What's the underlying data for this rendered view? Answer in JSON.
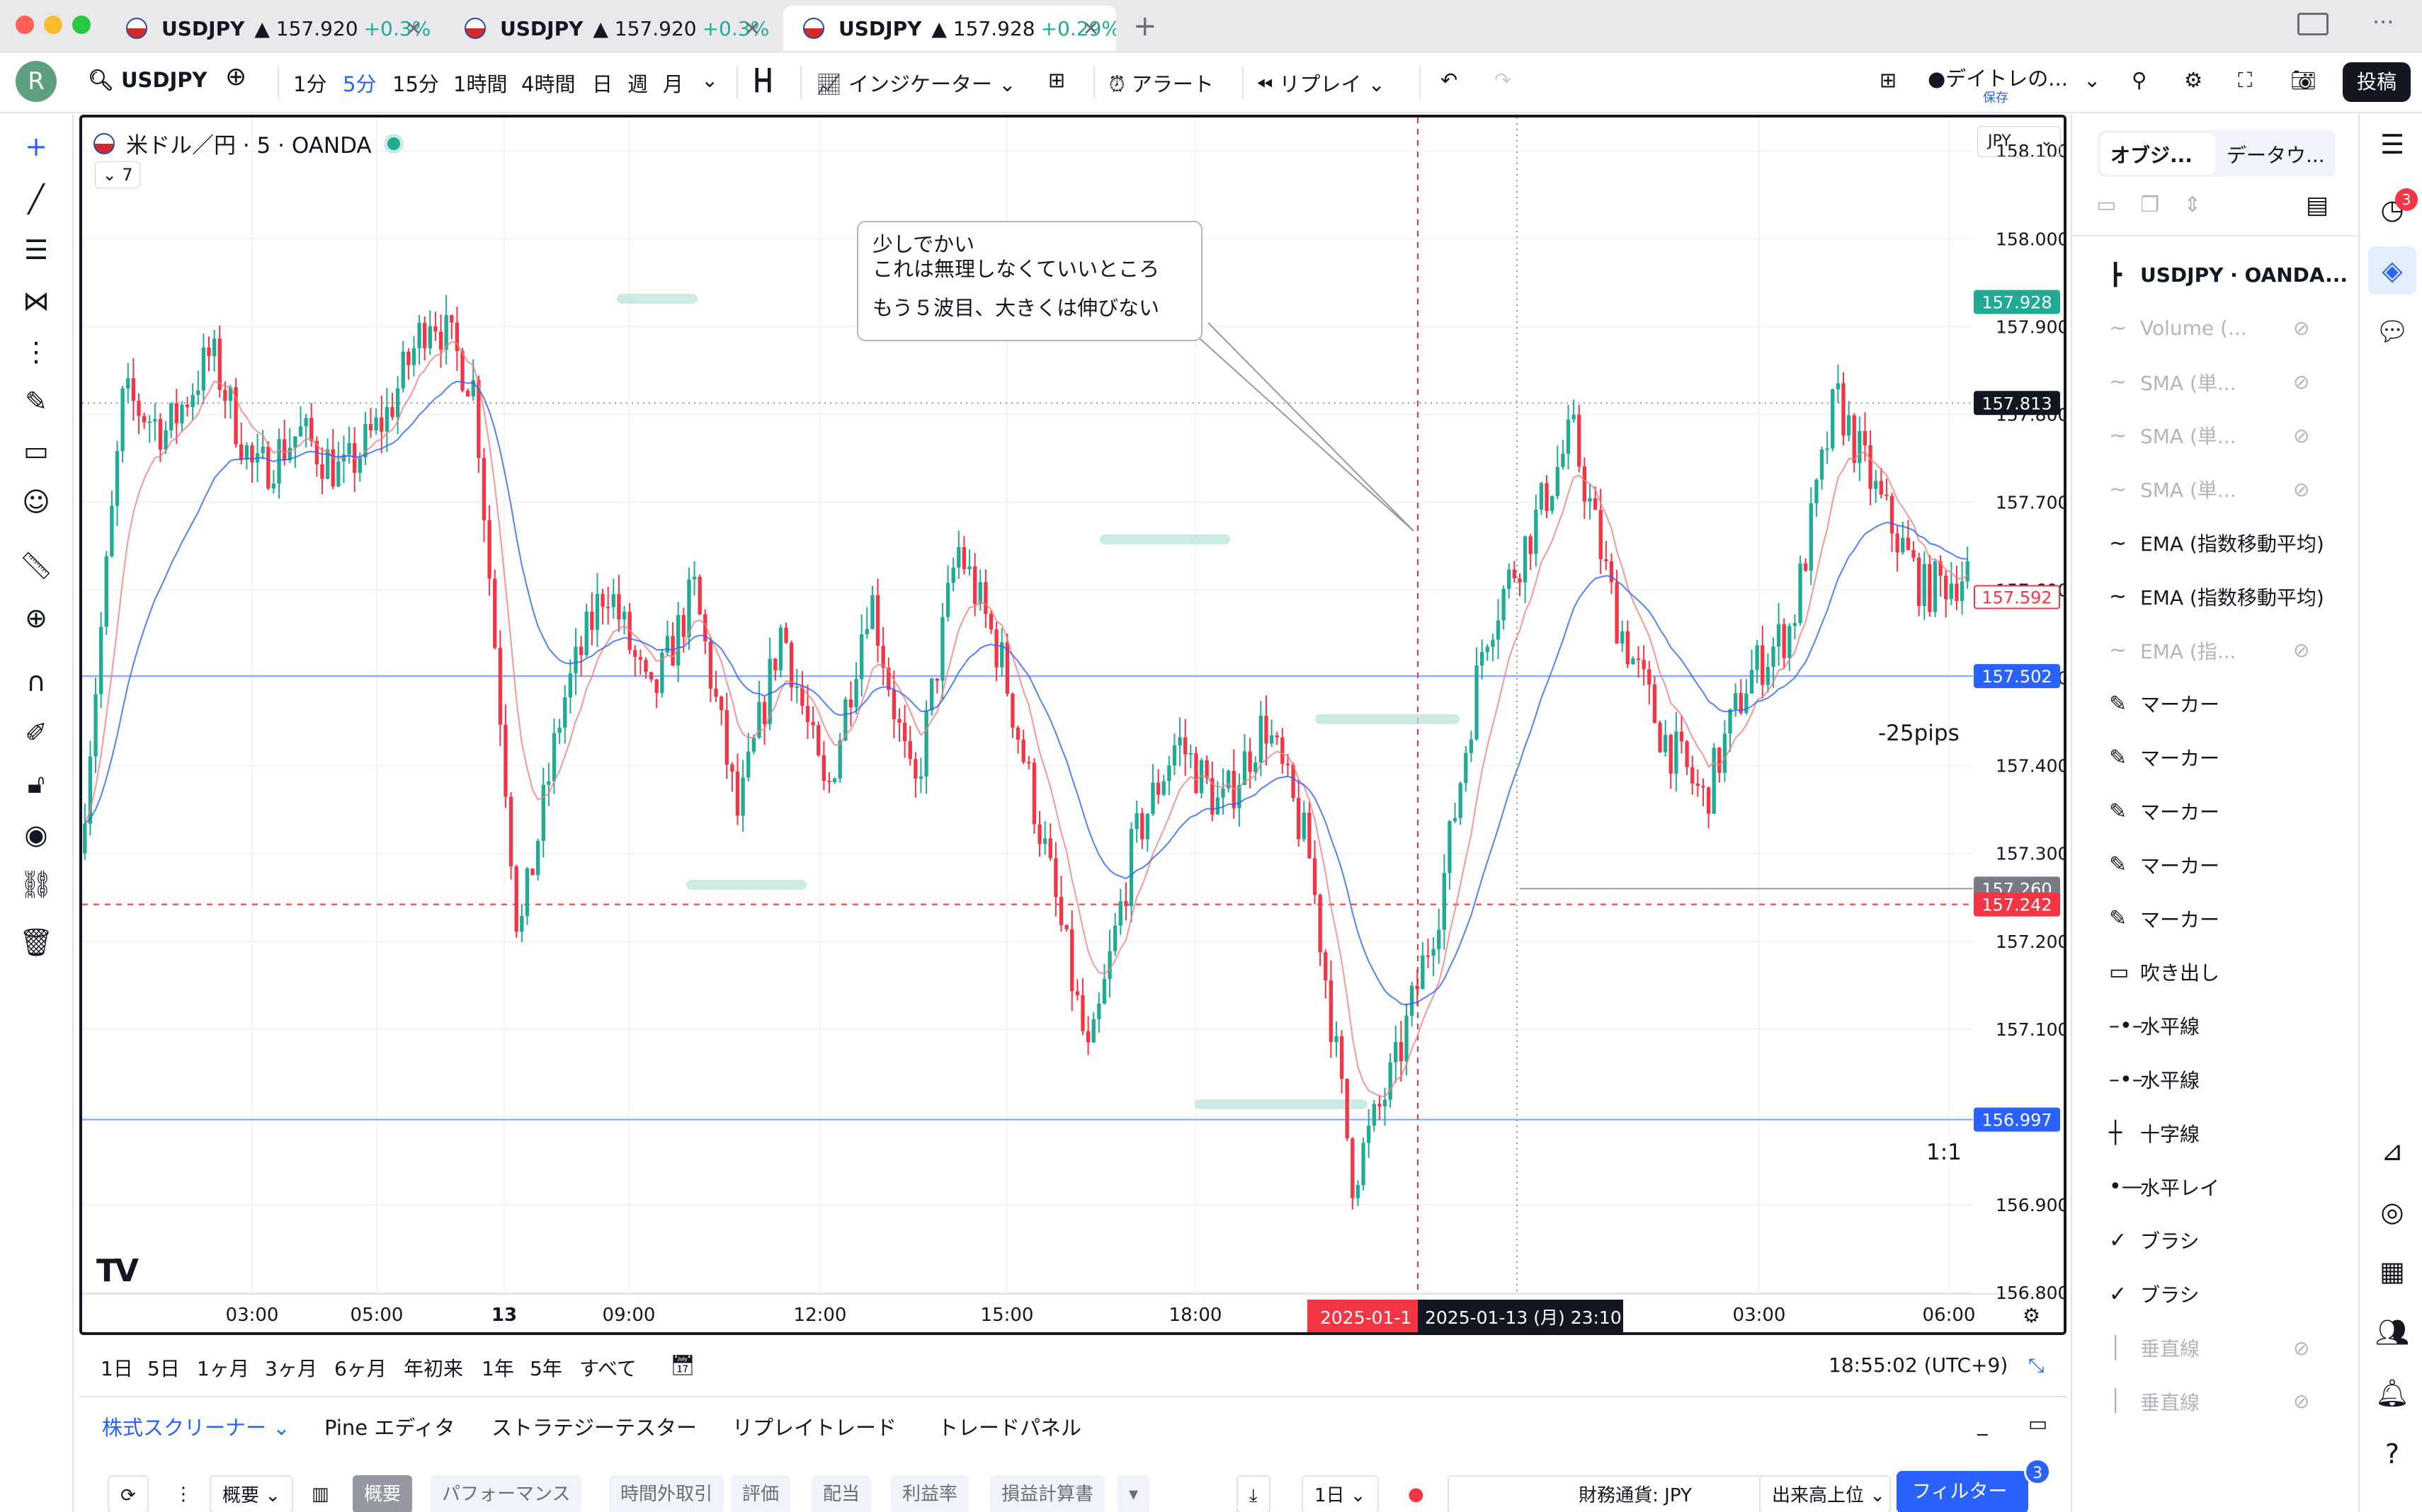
{
  "tabs": [
    {
      "symbol": "USDJPY",
      "price": "▲ 157.920",
      "change": "+0.3%"
    },
    {
      "symbol": "USDJPY",
      "price": "▲ 157.920",
      "change": "+0.3%"
    },
    {
      "symbol": "USDJPY",
      "price": "▲ 157.928",
      "change": "+0.29%"
    }
  ],
  "toolbar": {
    "avatar": "R",
    "symbol": "USDJPY",
    "intervals": [
      "1分",
      "5分",
      "15分",
      "1時間",
      "4時間",
      "日",
      "週",
      "月"
    ],
    "active_interval": "5分",
    "indicators": "インジケーター",
    "alert": "アラート",
    "replay": "リプレイ",
    "layout_name": "●デイトレの...",
    "layout_saved": "保存",
    "post": "投稿"
  },
  "chart": {
    "legend": "米ドル／円 · 5 · OANDA",
    "indicator_count": "7",
    "currency": "JPY",
    "callout_lines": [
      "少しでかい",
      "これは無理しなくていいところ",
      "",
      "もう５波目、大きくは伸びない"
    ],
    "pips_label": "-25pips",
    "ratio_label": "1:1",
    "crosshair_date": "2025-01-1",
    "crosshair_datetime": "2025-01-13 (月)   23:10"
  },
  "chart_data": {
    "type": "candlestick",
    "symbol": "USDJPY",
    "timeframe": "5",
    "y_ticks": [
      "158.100",
      "158.000",
      "157.900",
      "157.800",
      "157.700",
      "157.600",
      "157.500",
      "157.400",
      "157.300",
      "157.200",
      "157.100",
      "156.900",
      "156.800"
    ],
    "x_ticks": [
      "03:00",
      "05:00",
      "13",
      "09:00",
      "12:00",
      "15:00",
      "18:00",
      "03:00",
      "06:00"
    ],
    "ylim": [
      156.8,
      158.13
    ],
    "price_labels": [
      {
        "value": "157.928",
        "color": "#22ab94"
      },
      {
        "value": "157.813",
        "color": "#131722"
      },
      {
        "value": "157.592",
        "color": "#f23645"
      },
      {
        "value": "157.502",
        "color": "#2962ff"
      },
      {
        "value": "157.260",
        "color": "#787b86"
      },
      {
        "value": "157.242",
        "color": "#f23645"
      },
      {
        "value": "156.997",
        "color": "#2962ff"
      }
    ],
    "key_levels": [
      157.502,
      157.242,
      156.997,
      157.813
    ],
    "approx_path": [
      157.3,
      157.82,
      157.78,
      157.87,
      157.73,
      157.78,
      157.73,
      157.8,
      157.92,
      157.83,
      157.2,
      157.47,
      157.61,
      157.47,
      157.6,
      157.34,
      157.56,
      157.36,
      157.6,
      157.36,
      157.65,
      157.52,
      157.3,
      157.06,
      157.31,
      157.43,
      157.35,
      157.45,
      157.3,
      156.93,
      157.06,
      157.25,
      157.55,
      157.66,
      157.78,
      157.57,
      157.44,
      157.36,
      157.5,
      157.56,
      157.82,
      157.7,
      157.6,
      157.62
    ]
  },
  "time_range": {
    "buttons": [
      "1日",
      "5日",
      "1ヶ月",
      "3ヶ月",
      "6ヶ月",
      "年初来",
      "1年",
      "5年",
      "すべて"
    ],
    "clock": "18:55:02 (UTC+9)"
  },
  "bottom_panel": {
    "tabs": [
      "株式スクリーナー",
      "Pine エディタ",
      "ストラテジーテスター",
      "リプレイトレード",
      "トレードパネル"
    ],
    "filters": [
      "概要",
      "概要",
      "パフォーマンス",
      "時間外取引",
      "評価",
      "配当",
      "利益率",
      "損益計算書"
    ],
    "interval": "1日",
    "currency": "財務通貨: JPY",
    "sort": "出来高上位",
    "filter_button": "フィルター",
    "filter_count": "3"
  },
  "object_tree": {
    "tabs": [
      "オブジ...",
      "データウ..."
    ],
    "items": [
      {
        "label": "USDJPY · OANDA...",
        "dim": false,
        "hidden": false,
        "icon": "candle-icon"
      },
      {
        "label": "Volume (...",
        "dim": true,
        "hidden": true,
        "icon": "wave-icon"
      },
      {
        "label": "SMA (単...",
        "dim": true,
        "hidden": true,
        "icon": "wave-icon"
      },
      {
        "label": "SMA (単...",
        "dim": true,
        "hidden": true,
        "icon": "wave-icon"
      },
      {
        "label": "SMA (単...",
        "dim": true,
        "hidden": true,
        "icon": "wave-icon"
      },
      {
        "label": "EMA (指数移動平均)",
        "dim": false,
        "hidden": false,
        "icon": "wave-icon"
      },
      {
        "label": "EMA (指数移動平均)",
        "dim": false,
        "hidden": false,
        "icon": "wave-icon"
      },
      {
        "label": "EMA (指...",
        "dim": true,
        "hidden": true,
        "icon": "wave-icon"
      },
      {
        "label": "マーカー",
        "dim": false,
        "hidden": false,
        "icon": "marker-icon"
      },
      {
        "label": "マーカー",
        "dim": false,
        "hidden": false,
        "icon": "marker-icon"
      },
      {
        "label": "マーカー",
        "dim": false,
        "hidden": false,
        "icon": "marker-icon"
      },
      {
        "label": "マーカー",
        "dim": false,
        "hidden": false,
        "icon": "marker-icon"
      },
      {
        "label": "マーカー",
        "dim": false,
        "hidden": false,
        "icon": "marker-icon"
      },
      {
        "label": "吹き出し",
        "dim": false,
        "hidden": false,
        "icon": "callout-icon"
      },
      {
        "label": "水平線",
        "dim": false,
        "hidden": false,
        "icon": "hline-icon"
      },
      {
        "label": "水平線",
        "dim": false,
        "hidden": false,
        "icon": "hline-icon"
      },
      {
        "label": "十字線",
        "dim": false,
        "hidden": false,
        "icon": "crosshair-icon"
      },
      {
        "label": "水平レイ",
        "dim": false,
        "hidden": false,
        "icon": "hray-icon"
      },
      {
        "label": "ブラシ",
        "dim": false,
        "hidden": false,
        "icon": "brush-icon"
      },
      {
        "label": "ブラシ",
        "dim": false,
        "hidden": false,
        "icon": "brush-icon"
      },
      {
        "label": "垂直線",
        "dim": true,
        "hidden": true,
        "icon": "vline-icon"
      },
      {
        "label": "垂直線",
        "dim": true,
        "hidden": true,
        "icon": "vline-icon"
      }
    ]
  },
  "right_sidebar": {
    "alerts_badge": "3"
  },
  "colors": {
    "up": "#22ab94",
    "down": "#f23645",
    "accent": "#2962ff"
  }
}
